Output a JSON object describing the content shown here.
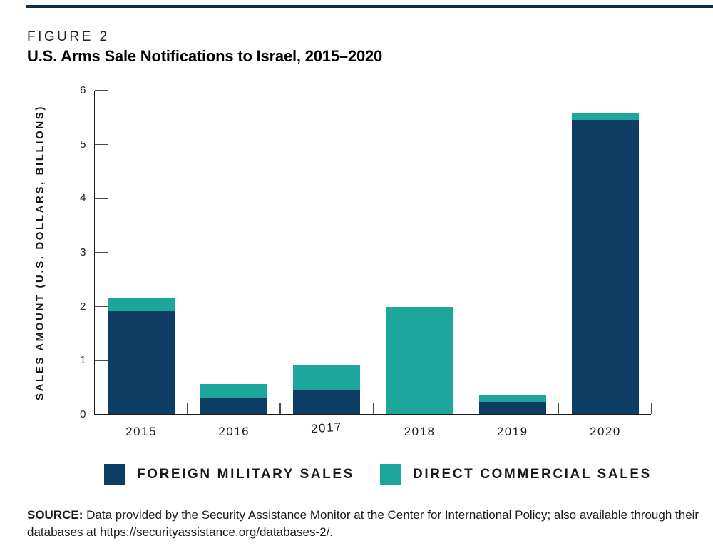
{
  "figure": {
    "label": "FIGURE 2",
    "title": "U.S. Arms Sale Notifications to Israel, 2015–2020"
  },
  "chart_data": {
    "type": "bar",
    "stacked": true,
    "title": "U.S. Arms Sale Notifications to Israel, 2015–2020",
    "categories": [
      "2015",
      "2016",
      "2017",
      "2018",
      "2019",
      "2020"
    ],
    "series": [
      {
        "name": "FOREIGN MILITARY SALES",
        "color": "#0d3d63",
        "values": [
          1.9,
          0.3,
          0.44,
          0,
          0.22,
          5.44
        ]
      },
      {
        "name": "DIRECT COMMERCIAL SALES",
        "color": "#1ca69c",
        "values": [
          0.25,
          0.25,
          0.46,
          1.98,
          0.13,
          0.12
        ]
      }
    ],
    "xlabel": "",
    "ylabel": "SALES AMOUNT (U.S. DOLLARS, BILLIONS)",
    "ylim": [
      0,
      6
    ],
    "yticks": [
      0,
      1,
      2,
      3,
      4,
      5,
      6
    ],
    "grid": false,
    "legend_position": "bottom"
  },
  "legend": {
    "items": [
      {
        "label": "FOREIGN MILITARY SALES",
        "color": "#0d3d63"
      },
      {
        "label": "DIRECT COMMERCIAL SALES",
        "color": "#1ca69c"
      }
    ]
  },
  "source": {
    "prefix": "SOURCE:",
    "text": " Data provided by the Security Assistance Monitor at the Center for International Policy; also available through their databases at https://securityassistance.org/databases-2/."
  }
}
